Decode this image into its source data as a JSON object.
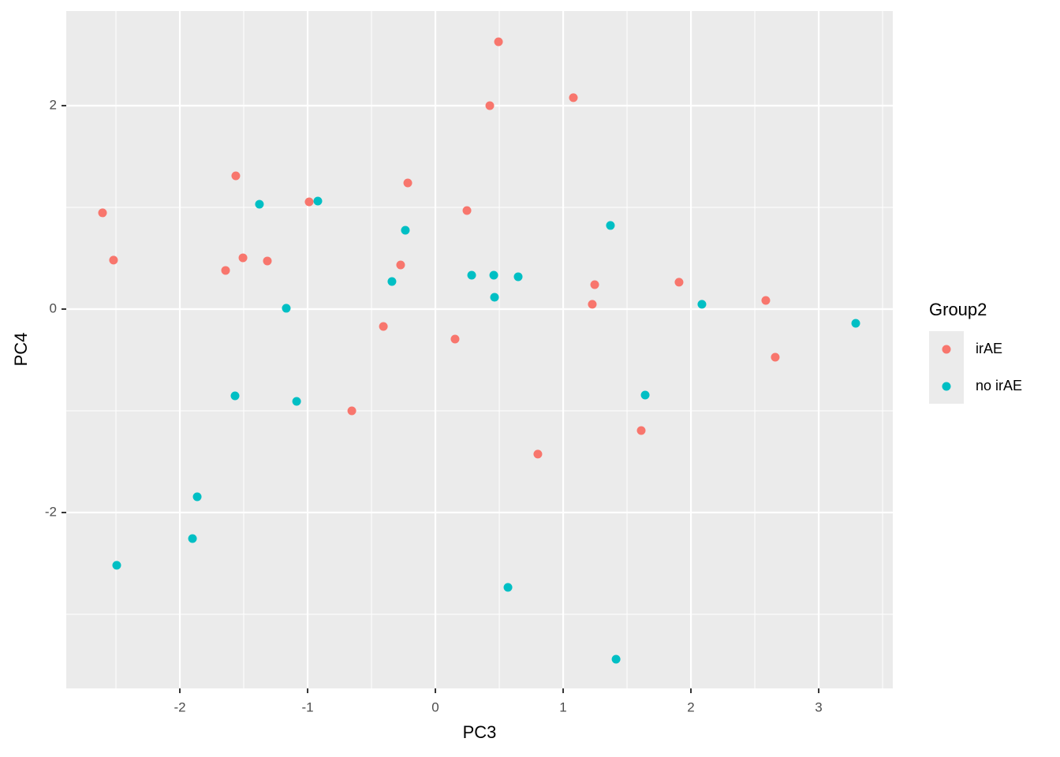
{
  "chart_data": {
    "type": "scatter",
    "x_label": "PC3",
    "y_label": "PC4",
    "legend_title": "Group2",
    "legend_position": "right",
    "grid": true,
    "xlim": [
      -2.889,
      3.58
    ],
    "ylim": [
      -3.729,
      2.93
    ],
    "xticks": [
      -2,
      -1,
      0,
      1,
      2,
      3
    ],
    "yticks": [
      -2,
      0,
      2
    ],
    "series": [
      {
        "name": "irAE",
        "color": "#f8766d",
        "x": [
          -2.605,
          -2.519,
          -1.562,
          -1.506,
          -1.642,
          -1.315,
          -0.988,
          -0.216,
          -0.407,
          -0.654,
          -0.272,
          0.247,
          0.426,
          0.494,
          1.08,
          0.154,
          1.247,
          1.228,
          0.802,
          1.611,
          1.907,
          2.586,
          2.66
        ],
        "values": [
          0.946,
          0.481,
          1.31,
          0.504,
          0.38,
          0.473,
          1.054,
          1.24,
          -0.171,
          -1.0,
          0.434,
          0.969,
          2.0,
          2.628,
          2.078,
          -0.295,
          0.24,
          0.047,
          -1.426,
          -1.194,
          0.264,
          0.085,
          -0.473
        ]
      },
      {
        "name": "no irAE",
        "color": "#00bfc4",
        "x": [
          -2.494,
          -1.901,
          -1.864,
          -1.568,
          -1.377,
          -1.167,
          -1.086,
          -0.92,
          -0.34,
          -0.235,
          0.284,
          0.457,
          0.463,
          0.648,
          0.568,
          1.37,
          1.414,
          1.642,
          2.086,
          3.29
        ],
        "values": [
          -2.519,
          -2.256,
          -1.845,
          -0.853,
          1.031,
          0.008,
          -0.907,
          1.062,
          0.271,
          0.775,
          0.333,
          0.333,
          0.116,
          0.318,
          -2.736,
          0.822,
          -3.442,
          -0.845,
          0.047,
          -0.14
        ]
      }
    ]
  }
}
